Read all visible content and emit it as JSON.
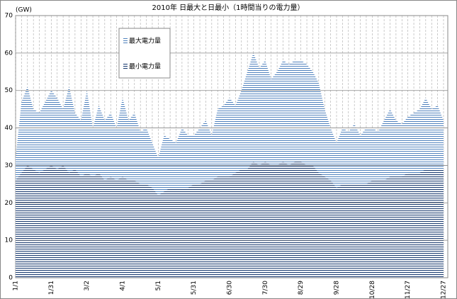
{
  "chart_data": {
    "type": "area",
    "title": "2010年 日最大と日最小（1時間当りの電力量）",
    "y_label": "(GW)",
    "categories": [
      "1/1",
      null,
      null,
      null,
      null,
      null,
      "1/31",
      null,
      null,
      null,
      null,
      null,
      "3/2",
      null,
      null,
      null,
      null,
      null,
      "4/1",
      null,
      null,
      null,
      null,
      null,
      "5/1",
      null,
      null,
      null,
      null,
      null,
      "5/31",
      null,
      null,
      null,
      null,
      null,
      "6/30",
      null,
      null,
      null,
      null,
      null,
      "7/30",
      null,
      null,
      null,
      null,
      null,
      "8/29",
      null,
      null,
      null,
      null,
      null,
      "9/28",
      null,
      null,
      null,
      null,
      null,
      "10/28",
      null,
      null,
      null,
      null,
      null,
      "11/27",
      null,
      null,
      null,
      null,
      null,
      "12/27"
    ],
    "series": [
      {
        "name": "最大電力量",
        "color": "#4f81bd",
        "values": [
          32,
          47,
          51,
          45,
          44,
          47,
          50,
          48,
          45,
          51,
          44,
          42,
          50,
          40,
          46,
          42,
          44,
          40,
          48,
          42,
          44,
          39,
          40,
          36,
          32,
          38,
          37,
          36,
          40,
          38,
          38,
          40,
          42,
          38,
          45,
          46,
          48,
          46,
          50,
          55,
          60,
          56,
          58,
          53,
          55,
          58,
          57,
          58,
          58,
          57,
          55,
          52,
          45,
          40,
          36,
          40,
          39,
          41,
          38,
          40,
          40,
          39,
          42,
          45,
          42,
          41,
          43,
          44,
          45,
          48,
          45,
          46,
          42
        ]
      },
      {
        "name": "最小電力量",
        "color": "#1f3f73",
        "values": [
          26,
          28,
          30,
          29,
          28,
          29,
          30,
          29,
          30,
          28,
          29,
          27,
          28,
          27,
          28,
          26,
          27,
          26,
          27,
          26,
          26,
          25,
          25,
          24,
          22,
          23,
          24,
          24,
          24,
          24,
          25,
          25,
          26,
          26,
          27,
          27,
          27,
          28,
          29,
          29,
          31,
          30,
          31,
          30,
          30,
          31,
          30,
          31,
          31,
          30,
          30,
          28,
          27,
          26,
          24,
          25,
          25,
          25,
          25,
          25,
          26,
          26,
          26,
          27,
          27,
          27,
          28,
          28,
          28,
          29,
          29,
          29,
          29
        ]
      }
    ],
    "ylim": [
      0,
      70
    ],
    "yticks": [
      0,
      10,
      20,
      30,
      40,
      50,
      60,
      70
    ],
    "grid": true,
    "legend": "top-left"
  }
}
